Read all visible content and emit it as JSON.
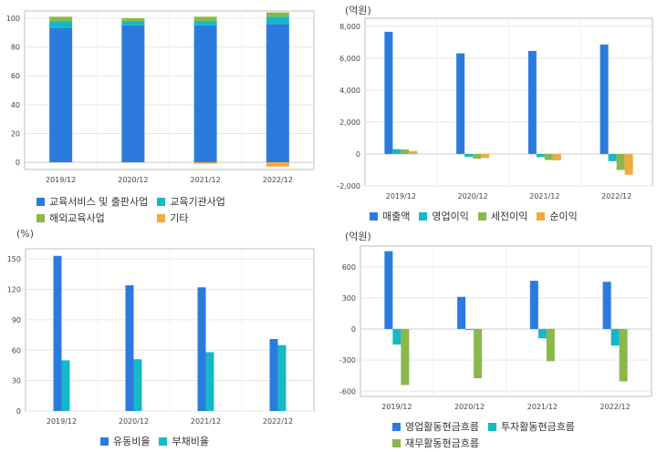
{
  "colors": {
    "blue": "#2b7bde",
    "teal": "#14b8c8",
    "green": "#8ab84a",
    "orange": "#f2a93b"
  },
  "chart_data": [
    {
      "id": "c1",
      "type": "bar",
      "stacked": true,
      "unit": "",
      "categories": [
        "2019/12",
        "2020/12",
        "2021/12",
        "2022/12"
      ],
      "ylim": [
        -5,
        105
      ],
      "yticks": [
        0,
        20,
        40,
        60,
        80,
        100
      ],
      "series": [
        {
          "name": "교육서비스 및 출판사업",
          "color": "#2b7bde",
          "values": [
            93,
            95,
            95,
            96
          ]
        },
        {
          "name": "교육기관사업",
          "color": "#14b8c8",
          "values": [
            5,
            3,
            3,
            5
          ]
        },
        {
          "name": "해외교육사업",
          "color": "#8ab84a",
          "values": [
            3,
            2,
            3,
            3
          ]
        },
        {
          "name": "기타",
          "color": "#f2a93b",
          "values": [
            0,
            0,
            -1,
            -3
          ]
        }
      ]
    },
    {
      "id": "c2",
      "type": "bar",
      "unit": "(억원)",
      "categories": [
        "2019/12",
        "2020/12",
        "2021/12",
        "2022/12"
      ],
      "ylim": [
        -2000,
        8500
      ],
      "yticks": [
        -2000,
        0,
        2000,
        4000,
        6000,
        8000
      ],
      "series": [
        {
          "name": "매출액",
          "color": "#2b7bde",
          "values": [
            7650,
            6300,
            6450,
            6850
          ]
        },
        {
          "name": "영업이익",
          "color": "#14b8c8",
          "values": [
            300,
            -180,
            -200,
            -450
          ]
        },
        {
          "name": "세전이익",
          "color": "#8ab84a",
          "values": [
            280,
            -300,
            -380,
            -1000
          ]
        },
        {
          "name": "순이익",
          "color": "#f2a93b",
          "values": [
            180,
            -250,
            -400,
            -1300
          ]
        }
      ]
    },
    {
      "id": "c3",
      "type": "bar",
      "unit": "(%)",
      "categories": [
        "2019/12",
        "2020/12",
        "2021/12",
        "2022/12"
      ],
      "ylim": [
        0,
        160
      ],
      "yticks": [
        0,
        30,
        60,
        90,
        120,
        150
      ],
      "series": [
        {
          "name": "유동비율",
          "color": "#2b7bde",
          "values": [
            153,
            124,
            122,
            71
          ]
        },
        {
          "name": "부채비율",
          "color": "#14b8c8",
          "values": [
            50,
            51,
            58,
            65
          ]
        }
      ]
    },
    {
      "id": "c4",
      "type": "bar",
      "unit": "(억원)",
      "categories": [
        "2019/12",
        "2020/12",
        "2021/12",
        "2022/12"
      ],
      "ylim": [
        -650,
        800
      ],
      "yticks": [
        -600,
        -300,
        0,
        300,
        600
      ],
      "series": [
        {
          "name": "영업활동현금흐름",
          "color": "#2b7bde",
          "values": [
            750,
            310,
            465,
            455
          ]
        },
        {
          "name": "투자활동현금흐름",
          "color": "#14b8c8",
          "values": [
            -150,
            -10,
            -90,
            -160
          ]
        },
        {
          "name": "재무활동현금흐름",
          "color": "#8ab84a",
          "values": [
            -540,
            -475,
            -310,
            -505
          ]
        }
      ]
    }
  ]
}
